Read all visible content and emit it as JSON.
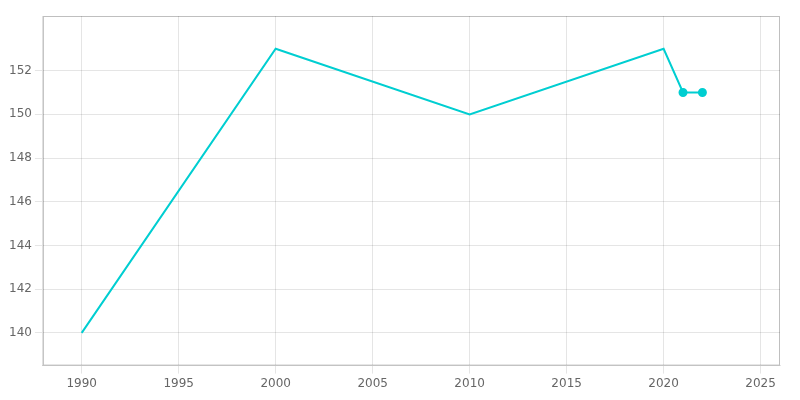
{
  "chart_data": {
    "type": "line",
    "x": [
      1990,
      2000,
      2010,
      2020,
      2021,
      2022
    ],
    "series": [
      {
        "values": [
          140,
          153,
          150,
          153,
          151,
          151
        ],
        "color": "#00CED1",
        "line_style": "solid"
      },
      {
        "values": [
          null,
          null,
          null,
          null,
          151,
          151
        ],
        "color": "#00CED1",
        "type": "scatter",
        "marker": "o"
      }
    ],
    "xlim": [
      1988,
      2026
    ],
    "ylim": [
      138.5,
      154.5
    ],
    "xticks": [
      1990,
      1995,
      2000,
      2005,
      2010,
      2015,
      2020,
      2025
    ],
    "yticks": [
      140,
      142,
      144,
      146,
      148,
      150,
      152
    ],
    "grid": true
  }
}
